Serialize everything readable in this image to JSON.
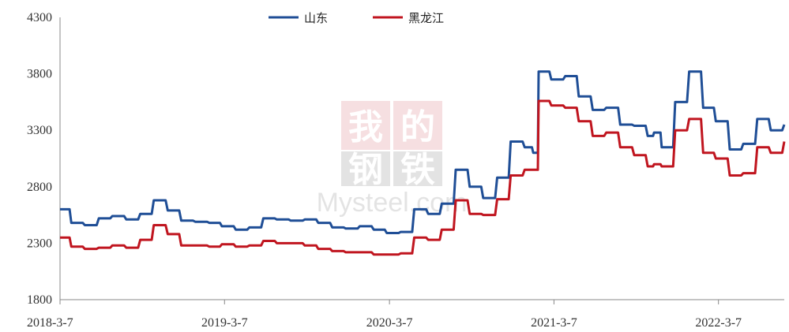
{
  "chart_data": {
    "type": "line",
    "title": "",
    "xlabel": "",
    "ylabel": "",
    "ylim": [
      1800,
      4300
    ],
    "yticks": [
      1800,
      2300,
      2800,
      3300,
      3800,
      4300
    ],
    "xlim": [
      "2018-03-07",
      "2022-07-31"
    ],
    "xticks": [
      "2018-3-7",
      "2019-3-7",
      "2020-3-7",
      "2021-3-7",
      "2022-3-7"
    ],
    "grid": false,
    "legend": "top-center",
    "series": [
      {
        "name": "山东",
        "color": "#1f4e96",
        "x": [
          "2018-03-07",
          "2018-04-01",
          "2018-05-01",
          "2018-06-01",
          "2018-07-01",
          "2018-08-01",
          "2018-09-01",
          "2018-10-01",
          "2018-11-01",
          "2018-12-01",
          "2019-01-01",
          "2019-02-01",
          "2019-03-01",
          "2019-04-01",
          "2019-05-01",
          "2019-06-01",
          "2019-07-01",
          "2019-08-01",
          "2019-09-01",
          "2019-10-01",
          "2019-11-01",
          "2019-12-01",
          "2020-01-01",
          "2020-02-01",
          "2020-03-01",
          "2020-04-01",
          "2020-05-01",
          "2020-06-01",
          "2020-07-01",
          "2020-08-01",
          "2020-09-01",
          "2020-10-01",
          "2020-11-01",
          "2020-12-01",
          "2021-01-01",
          "2021-01-20",
          "2021-02-01",
          "2021-03-01",
          "2021-04-01",
          "2021-05-01",
          "2021-06-01",
          "2021-07-01",
          "2021-08-01",
          "2021-09-01",
          "2021-10-01",
          "2021-10-15",
          "2021-11-01",
          "2021-12-01",
          "2022-01-01",
          "2022-02-01",
          "2022-03-01",
          "2022-04-01",
          "2022-05-01",
          "2022-06-01",
          "2022-07-01",
          "2022-07-31"
        ],
        "values": [
          2600,
          2480,
          2460,
          2520,
          2540,
          2510,
          2560,
          2680,
          2590,
          2500,
          2490,
          2480,
          2450,
          2420,
          2440,
          2520,
          2510,
          2500,
          2510,
          2480,
          2440,
          2430,
          2450,
          2420,
          2390,
          2400,
          2600,
          2560,
          2650,
          2950,
          2800,
          2700,
          2880,
          3200,
          3150,
          3100,
          3820,
          3750,
          3780,
          3600,
          3480,
          3500,
          3350,
          3340,
          3250,
          3280,
          3150,
          3550,
          3820,
          3500,
          3380,
          3130,
          3180,
          3400,
          3300,
          3350
        ]
      },
      {
        "name": "黑龙江",
        "color": "#c0151f",
        "x": [
          "2018-03-07",
          "2018-04-01",
          "2018-05-01",
          "2018-06-01",
          "2018-07-01",
          "2018-08-01",
          "2018-09-01",
          "2018-10-01",
          "2018-11-01",
          "2018-12-01",
          "2019-01-01",
          "2019-02-01",
          "2019-03-01",
          "2019-04-01",
          "2019-05-01",
          "2019-06-01",
          "2019-07-01",
          "2019-08-01",
          "2019-09-01",
          "2019-10-01",
          "2019-11-01",
          "2019-12-01",
          "2020-01-01",
          "2020-02-01",
          "2020-03-01",
          "2020-04-01",
          "2020-05-01",
          "2020-06-01",
          "2020-07-01",
          "2020-08-01",
          "2020-09-01",
          "2020-10-01",
          "2020-11-01",
          "2020-12-01",
          "2021-01-01",
          "2021-01-20",
          "2021-02-01",
          "2021-03-01",
          "2021-04-01",
          "2021-05-01",
          "2021-06-01",
          "2021-07-01",
          "2021-08-01",
          "2021-09-01",
          "2021-10-01",
          "2021-10-15",
          "2021-11-01",
          "2021-12-01",
          "2022-01-01",
          "2022-02-01",
          "2022-03-01",
          "2022-04-01",
          "2022-05-01",
          "2022-06-01",
          "2022-07-01",
          "2022-07-31"
        ],
        "values": [
          2350,
          2270,
          2250,
          2260,
          2280,
          2260,
          2330,
          2460,
          2380,
          2280,
          2280,
          2270,
          2290,
          2270,
          2280,
          2320,
          2300,
          2300,
          2280,
          2250,
          2230,
          2220,
          2220,
          2200,
          2200,
          2210,
          2350,
          2330,
          2420,
          2680,
          2560,
          2550,
          2690,
          2900,
          2950,
          2950,
          3560,
          3520,
          3500,
          3380,
          3250,
          3280,
          3150,
          3080,
          2980,
          3000,
          2980,
          3300,
          3400,
          3100,
          3050,
          2900,
          2920,
          3150,
          3100,
          3200
        ]
      }
    ]
  },
  "watermark": {
    "chinese_chars": [
      "我",
      "的",
      "钢",
      "铁"
    ],
    "latin": "Mysteel.com"
  }
}
